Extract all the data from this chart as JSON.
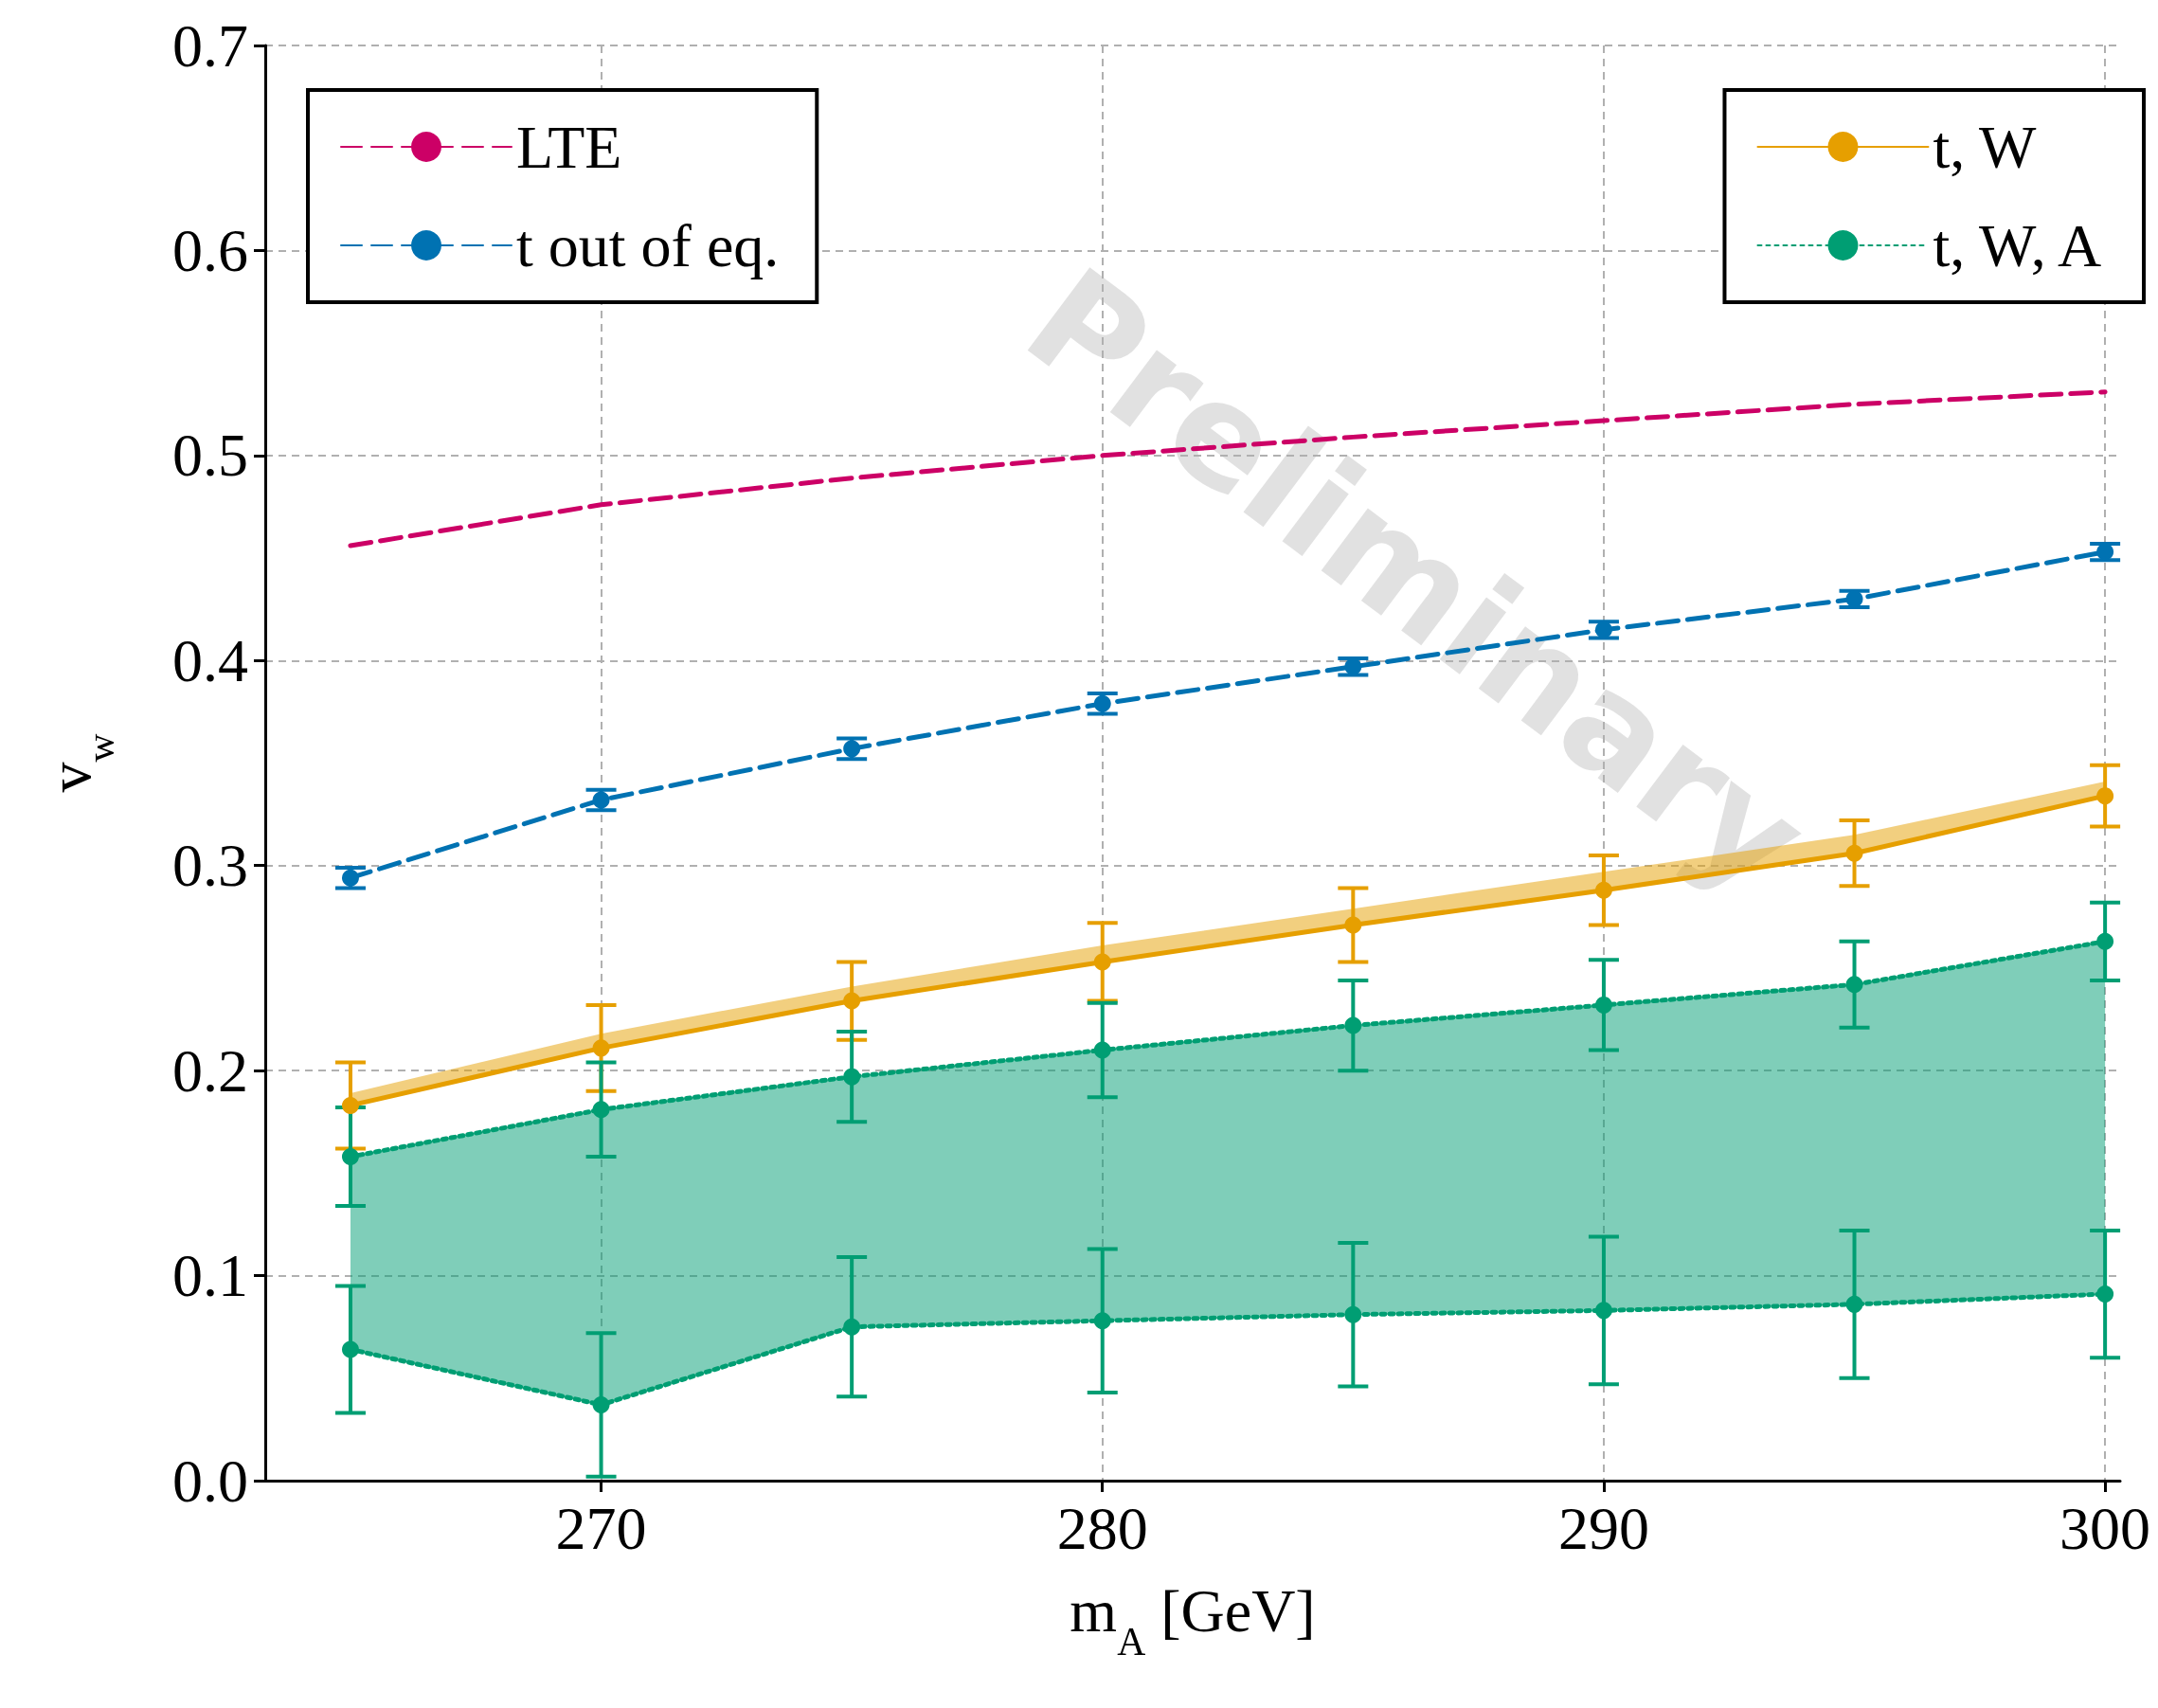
{
  "chart_data": {
    "type": "line",
    "xlabel": "m$_{A}$ [GeV]",
    "ylabel": "v$_{w}$",
    "x": [
      265,
      270,
      275,
      280,
      285,
      290,
      295,
      300
    ],
    "series": [
      {
        "name": "LTE",
        "color": "#cc0066",
        "line_style": "dashed",
        "marker": "none",
        "values": [
          0.456,
          0.476,
          0.489,
          0.5,
          0.509,
          0.517,
          0.525,
          0.531
        ]
      },
      {
        "name": "t out of eq.",
        "color": "#0072b2",
        "line_style": "dashed",
        "marker": "circle",
        "values": [
          0.294,
          0.332,
          0.357,
          0.379,
          0.397,
          0.415,
          0.43,
          0.453
        ],
        "errors": [
          0.005,
          0.005,
          0.005,
          0.005,
          0.004,
          0.004,
          0.004,
          0.004
        ]
      },
      {
        "name": "t, W",
        "color": "#e69f00",
        "line_style": "solid",
        "marker": "circle",
        "values": [
          0.183,
          0.211,
          0.234,
          0.253,
          0.271,
          0.288,
          0.306,
          0.334
        ],
        "errors": [
          0.021,
          0.021,
          0.019,
          0.019,
          0.018,
          0.017,
          0.016,
          0.015
        ],
        "lower": [
          0.183,
          0.211,
          0.234,
          0.253,
          0.271,
          0.288,
          0.306,
          0.334
        ],
        "upper": [
          0.189,
          0.218,
          0.241,
          0.261,
          0.279,
          0.297,
          0.315,
          0.341
        ]
      },
      {
        "name": "t, W, A",
        "color": "#009e73",
        "line_style": "dotted",
        "marker": "circle",
        "values": [
          0.158,
          0.181,
          0.197,
          0.21,
          0.222,
          0.232,
          0.242,
          0.263
        ],
        "errors": [
          0.024,
          0.023,
          0.022,
          0.023,
          0.022,
          0.022,
          0.021,
          0.019
        ],
        "lower": [
          0.064,
          0.037,
          0.075,
          0.078,
          0.081,
          0.083,
          0.086,
          0.091
        ],
        "upper": [
          0.158,
          0.181,
          0.197,
          0.21,
          0.222,
          0.232,
          0.242,
          0.263
        ]
      },
      {
        "color": "#009e73",
        "line_style": "dotted",
        "marker": "circle",
        "values": [
          0.064,
          0.037,
          0.075,
          0.078,
          0.081,
          0.083,
          0.086,
          0.091
        ],
        "errors": [
          0.031,
          0.035,
          0.034,
          0.035,
          0.035,
          0.036,
          0.036,
          0.031
        ]
      }
    ],
    "xlim": [
      263.3,
      300.3
    ],
    "xticks": [
      270,
      280,
      290,
      300
    ],
    "ylim": [
      0,
      0.7
    ],
    "yticks": [
      {
        "value": 0,
        "label": "0.0"
      },
      0.1,
      0.2,
      0.3,
      0.4,
      0.5,
      0.6,
      0.7
    ],
    "grid": true,
    "legend": "top",
    "annotations": [
      "Preliminary"
    ]
  }
}
